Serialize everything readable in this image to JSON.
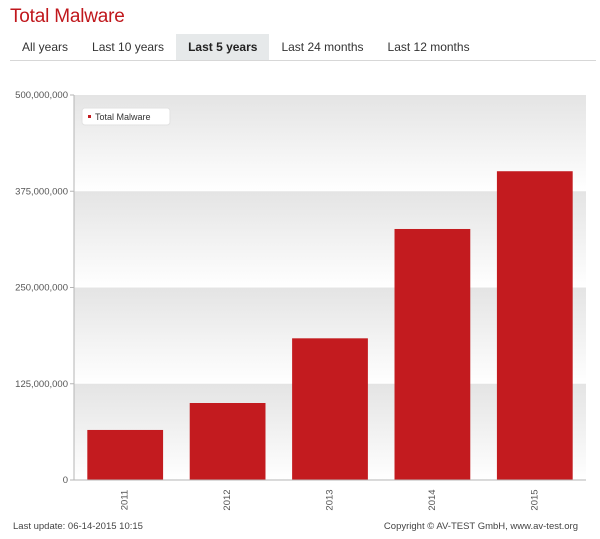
{
  "header": {
    "title": "Total Malware"
  },
  "tabs": [
    {
      "label": "All years",
      "active": false
    },
    {
      "label": "Last 10 years",
      "active": false
    },
    {
      "label": "Last 5 years",
      "active": true
    },
    {
      "label": "Last 24 months",
      "active": false
    },
    {
      "label": "Last 12 months",
      "active": false
    }
  ],
  "chart_data": {
    "type": "bar",
    "categories": [
      "2011",
      "2012",
      "2013",
      "2014",
      "2015"
    ],
    "series": [
      {
        "name": "Total Malware",
        "values": [
          65000000,
          100000000,
          184000000,
          326000000,
          401000000
        ],
        "color": "#c31b1f"
      }
    ],
    "yticks": [
      "0",
      "125,000,000",
      "250,000,000",
      "375,000,000",
      "500,000,000"
    ],
    "ylim": [
      0,
      500000000
    ],
    "grid": "alternating-bands",
    "legend": "top-left",
    "xlabel": "",
    "ylabel": ""
  },
  "footer": {
    "last_update": "Last update: 06-14-2015 10:15",
    "copyright": "Copyright © AV-TEST GmbH, www.av-test.org"
  }
}
